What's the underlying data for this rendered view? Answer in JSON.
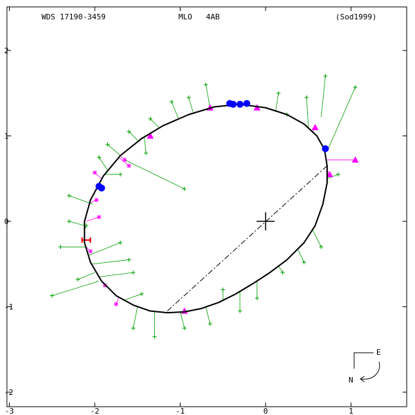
{
  "header": {
    "left": "WDS 17190-3459",
    "center": "MLO   4AB",
    "right": "(Sod1999)"
  },
  "compass": {
    "east": "E",
    "north": "N"
  },
  "colors": {
    "orbit": "#000000",
    "micrometer": "#00a000",
    "photographic": "#ff00ff",
    "speckle_triangle": "#ff00ff",
    "interferometric": "#0000ff",
    "hipparcos": "#ff0000",
    "frame": "#000000"
  },
  "chart_data": {
    "type": "scatter",
    "xlim": [
      -3,
      1.65
    ],
    "ylim": [
      -2.2,
      2.45
    ],
    "x_ticks": [
      -3,
      -2,
      -1,
      0,
      1
    ],
    "y_ticks": [
      -2,
      -1,
      0,
      1,
      2
    ],
    "x_tick_labels": [
      "-3",
      "-2",
      "-1",
      "0",
      "1"
    ],
    "y_tick_labels": [
      "-2",
      "-1",
      "0",
      "1",
      "2"
    ],
    "primary": [
      0,
      0
    ],
    "orbit": [
      [
        -1.15,
        -1.07
      ],
      [
        -0.95,
        -1.06
      ],
      [
        -0.75,
        -1.02
      ],
      [
        -0.55,
        -0.95
      ],
      [
        -0.35,
        -0.85
      ],
      [
        -0.15,
        -0.73
      ],
      [
        0.05,
        -0.6
      ],
      [
        0.25,
        -0.45
      ],
      [
        0.45,
        -0.25
      ],
      [
        0.58,
        -0.05
      ],
      [
        0.67,
        0.2
      ],
      [
        0.72,
        0.45
      ],
      [
        0.72,
        0.65
      ],
      [
        0.69,
        0.84
      ],
      [
        0.6,
        1.0
      ],
      [
        0.45,
        1.14
      ],
      [
        0.25,
        1.25
      ],
      [
        0.0,
        1.33
      ],
      [
        -0.3,
        1.37
      ],
      [
        -0.6,
        1.34
      ],
      [
        -0.9,
        1.25
      ],
      [
        -1.2,
        1.12
      ],
      [
        -1.45,
        0.97
      ],
      [
        -1.7,
        0.77
      ],
      [
        -1.9,
        0.53
      ],
      [
        -2.05,
        0.25
      ],
      [
        -2.12,
        0.0
      ],
      [
        -2.12,
        -0.25
      ],
      [
        -2.05,
        -0.48
      ],
      [
        -1.92,
        -0.7
      ],
      [
        -1.75,
        -0.87
      ],
      [
        -1.55,
        -0.98
      ],
      [
        -1.35,
        -1.05
      ],
      [
        -1.15,
        -1.07
      ]
    ],
    "line_of_nodes": [
      [
        -1.15,
        -1.05
      ],
      [
        0.72,
        0.65
      ]
    ],
    "micrometer": [
      {
        "obs": [
          0.7,
          1.7
        ],
        "fit": [
          0.65,
          1.22
        ]
      },
      {
        "obs": [
          1.05,
          1.57
        ],
        "fit": [
          0.72,
          0.82
        ]
      },
      {
        "obs": [
          0.15,
          1.5
        ],
        "fit": [
          0.12,
          1.3
        ]
      },
      {
        "obs": [
          -0.7,
          1.6
        ],
        "fit": [
          -0.65,
          1.33
        ]
      },
      {
        "obs": [
          -0.9,
          1.45
        ],
        "fit": [
          -0.85,
          1.28
        ]
      },
      {
        "obs": [
          -1.1,
          1.4
        ],
        "fit": [
          -1.02,
          1.2
        ]
      },
      {
        "obs": [
          -1.35,
          1.2
        ],
        "fit": [
          -1.25,
          1.1
        ]
      },
      {
        "obs": [
          -1.6,
          1.05
        ],
        "fit": [
          -1.5,
          0.95
        ]
      },
      {
        "obs": [
          -1.85,
          0.9
        ],
        "fit": [
          -1.7,
          0.77
        ]
      },
      {
        "obs": [
          -0.95,
          0.38
        ],
        "fit": [
          -1.65,
          0.72
        ]
      },
      {
        "obs": [
          -2.3,
          0.3
        ],
        "fit": [
          -2.02,
          0.2
        ]
      },
      {
        "obs": [
          -2.3,
          0.0
        ],
        "fit": [
          -2.12,
          -0.05
        ]
      },
      {
        "obs": [
          -2.4,
          -0.3
        ],
        "fit": [
          -2.1,
          -0.3
        ]
      },
      {
        "obs": [
          -1.6,
          -0.45
        ],
        "fit": [
          -2.03,
          -0.5
        ]
      },
      {
        "obs": [
          -1.55,
          -0.6
        ],
        "fit": [
          -1.95,
          -0.65
        ]
      },
      {
        "obs": [
          -2.5,
          -0.87
        ],
        "fit": [
          -1.95,
          -0.7
        ]
      },
      {
        "obs": [
          -2.2,
          -0.68
        ],
        "fit": [
          -2.0,
          -0.6
        ]
      },
      {
        "obs": [
          -1.45,
          -0.85
        ],
        "fit": [
          -1.65,
          -0.92
        ]
      },
      {
        "obs": [
          -1.55,
          -1.25
        ],
        "fit": [
          -1.5,
          -1.0
        ]
      },
      {
        "obs": [
          -1.3,
          -1.35
        ],
        "fit": [
          -1.3,
          -1.06
        ]
      },
      {
        "obs": [
          -0.95,
          -1.25
        ],
        "fit": [
          -1.0,
          -1.06
        ]
      },
      {
        "obs": [
          -0.65,
          -1.2
        ],
        "fit": [
          -0.7,
          -1.0
        ]
      },
      {
        "obs": [
          -0.5,
          -0.8
        ],
        "fit": [
          -0.5,
          -0.93
        ]
      },
      {
        "obs": [
          -0.3,
          -1.05
        ],
        "fit": [
          -0.3,
          -0.82
        ]
      },
      {
        "obs": [
          -0.1,
          -0.9
        ],
        "fit": [
          -0.1,
          -0.7
        ]
      },
      {
        "obs": [
          0.2,
          -0.6
        ],
        "fit": [
          0.15,
          -0.52
        ]
      },
      {
        "obs": [
          0.45,
          -0.48
        ],
        "fit": [
          0.38,
          -0.33
        ]
      },
      {
        "obs": [
          0.65,
          -0.3
        ],
        "fit": [
          0.55,
          -0.1
        ]
      },
      {
        "obs": [
          0.85,
          0.55
        ],
        "fit": [
          0.72,
          0.5
        ]
      },
      {
        "obs": [
          0.48,
          1.45
        ],
        "fit": [
          0.5,
          1.1
        ]
      },
      {
        "obs": [
          0.25,
          1.25
        ],
        "fit": [
          0.25,
          1.25
        ]
      },
      {
        "obs": [
          -1.4,
          0.8
        ],
        "fit": [
          -1.42,
          0.99
        ]
      },
      {
        "obs": [
          -1.95,
          0.75
        ],
        "fit": [
          -1.85,
          0.6
        ]
      },
      {
        "obs": [
          -1.7,
          0.55
        ],
        "fit": [
          -1.88,
          0.55
        ]
      },
      {
        "obs": [
          -2.1,
          -0.05
        ],
        "fit": [
          -2.12,
          -0.1
        ]
      },
      {
        "obs": [
          -1.7,
          -0.25
        ],
        "fit": [
          -2.08,
          -0.4
        ]
      }
    ],
    "photographic": [
      {
        "obs": [
          -2.0,
          0.57
        ],
        "fit": [
          -1.92,
          0.5
        ]
      },
      {
        "obs": [
          -1.98,
          0.25
        ],
        "fit": [
          -2.05,
          0.22
        ]
      },
      {
        "obs": [
          -1.95,
          0.05
        ],
        "fit": [
          -2.1,
          0.0
        ]
      },
      {
        "obs": [
          -2.05,
          -0.35
        ],
        "fit": [
          -2.1,
          -0.3
        ]
      },
      {
        "obs": [
          -1.88,
          -0.75
        ],
        "fit": [
          -1.92,
          -0.7
        ]
      },
      {
        "obs": [
          -1.75,
          -0.97
        ],
        "fit": [
          -1.72,
          -0.89
        ]
      },
      {
        "obs": [
          -1.6,
          0.65
        ],
        "fit": [
          -1.72,
          0.75
        ]
      },
      {
        "obs": [
          -1.65,
          0.72
        ],
        "fit": [
          -1.7,
          0.77
        ]
      }
    ],
    "speckle": [
      {
        "obs": [
          -1.35,
          1.0
        ],
        "fit": [
          -1.38,
          1.0
        ]
      },
      {
        "obs": [
          -0.65,
          1.33
        ],
        "fit": [
          -0.65,
          1.33
        ]
      },
      {
        "obs": [
          -0.1,
          1.33
        ],
        "fit": [
          -0.1,
          1.34
        ]
      },
      {
        "obs": [
          0.58,
          1.1
        ],
        "fit": [
          0.55,
          1.05
        ]
      },
      {
        "obs": [
          1.05,
          0.72
        ],
        "fit": [
          0.72,
          0.72
        ]
      },
      {
        "obs": [
          0.75,
          0.55
        ],
        "fit": [
          0.72,
          0.6
        ]
      },
      {
        "obs": [
          -0.95,
          -1.05
        ],
        "fit": [
          -0.95,
          -1.06
        ]
      }
    ],
    "interferometric": [
      [
        -0.42,
        1.38
      ],
      [
        -0.38,
        1.37
      ],
      [
        -0.3,
        1.37
      ],
      [
        -0.22,
        1.38
      ],
      [
        0.7,
        0.85
      ],
      [
        -1.95,
        0.41
      ],
      [
        -1.92,
        0.39
      ]
    ],
    "hipparcos": [
      {
        "obs": [
          -2.1,
          -0.22
        ],
        "fit": [
          -2.12,
          -0.2
        ]
      }
    ]
  }
}
